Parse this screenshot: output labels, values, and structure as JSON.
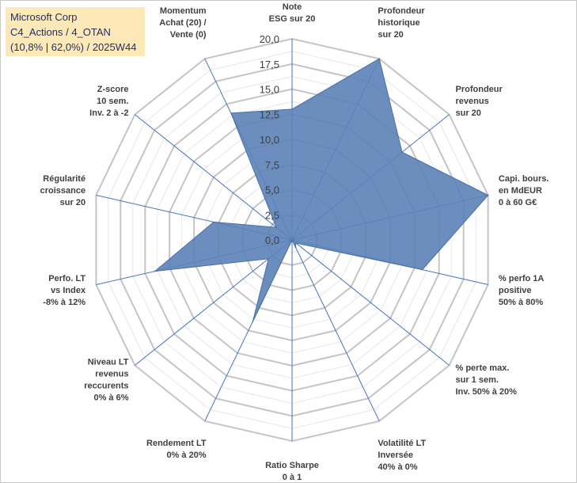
{
  "title_box": {
    "line1": "Microsoft Corp",
    "line2": "C4_Actions / 4_OTAN",
    "line3": "(10,8% | 62,0%) / 2025W44"
  },
  "chart_data": {
    "type": "radar",
    "title": "Microsoft Corp",
    "rlim": [
      0,
      20
    ],
    "ticks": [
      "0,0",
      "2,5",
      "5,0",
      "7,5",
      "10,0",
      "12,5",
      "15,0",
      "17,5",
      "20,0"
    ],
    "grid": true,
    "categories": [
      [
        "Note",
        "ESG sur 20"
      ],
      [
        "Profondeur",
        "historique",
        "sur 20"
      ],
      [
        "Profondeur",
        "revenus",
        "sur 20"
      ],
      [
        "Capi. bours.",
        "en MdEUR",
        "0 à 60 G€"
      ],
      [
        "% perfo 1A",
        "positive",
        "50% à 80%"
      ],
      [
        "% perte max.",
        "sur 1 sem.",
        "Inv. 50% à 20%"
      ],
      [
        "Volatilité LT",
        "Inversée",
        "40% à 0%"
      ],
      [
        "Ratio Sharpe",
        "0 à 1"
      ],
      [
        "Rendement LT",
        "0% à 20%"
      ],
      [
        "Niveau LT",
        "revenus",
        "reccurents",
        "0% à 6%"
      ],
      [
        "Perfo. LT",
        "vs Index",
        "-8% à 12%"
      ],
      [
        "Régularité",
        "croissance",
        "sur 20"
      ],
      [
        "Z-score",
        "10 sem.",
        "Inv. 2 à -2"
      ],
      [
        "Momentum",
        "Achat (20) /",
        "Vente (0)"
      ]
    ],
    "series": [
      {
        "name": "Microsoft Corp",
        "color": "#5b82b8",
        "values": [
          13.0,
          20.0,
          14.0,
          20.0,
          13.3,
          0.5,
          0.8,
          0.0,
          9.0,
          3.0,
          14.0,
          8.0,
          2.0,
          14.0
        ]
      }
    ]
  },
  "colors": {
    "series_fill": "#5b82b8",
    "series_stroke": "#4a6fa0",
    "grid": "#c8c8c8",
    "spoke": "#4472c4",
    "title_bg": "#fde9b8"
  }
}
